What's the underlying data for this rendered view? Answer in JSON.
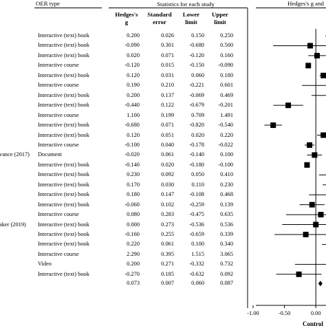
{
  "headers": {
    "group": "OER type",
    "stats": "Statistics for each study",
    "plot": "Hedges's g and",
    "hedges_line1": "Hedges's",
    "hedges_line2": "g",
    "se_line1": "Standard",
    "se_line2": "error",
    "lower_line1": "Lower",
    "lower_line2": "limit",
    "upper_line1": "Upper",
    "upper_line2": "limit"
  },
  "study_fragments": [
    "vance (2017)",
    "aker (2019)"
  ],
  "chart_data": {
    "type": "forest",
    "xlim": [
      -1.0,
      0.25
    ],
    "ticks": [
      "-1.00",
      "-0.50",
      "0.00"
    ],
    "axis_label": "Control",
    "rows": [
      {
        "study": "",
        "type": "Interactive (text) book",
        "g": "0.200",
        "se": "0.026",
        "lower": "0.150",
        "upper": "0.250"
      },
      {
        "study": "",
        "type": "Interactive (text) book",
        "g": "-0.090",
        "se": "0.301",
        "lower": "-0.680",
        "upper": "0.500"
      },
      {
        "study": "",
        "type": "Interactive (text) book",
        "g": "0.020",
        "se": "0.071",
        "lower": "-0.120",
        "upper": "0.160"
      },
      {
        "study": "",
        "type": "Interactive course",
        "g": "-0.120",
        "se": "0.015",
        "lower": "-0.150",
        "upper": "-0.090"
      },
      {
        "study": "",
        "type": "Interactive (text) book",
        "g": "0.120",
        "se": "0.031",
        "lower": "0.060",
        "upper": "0.180"
      },
      {
        "study": "",
        "type": "Interactive course",
        "g": "0.190",
        "se": "0.210",
        "lower": "-0.221",
        "upper": "0.601"
      },
      {
        "study": "",
        "type": "Interactive (text) book",
        "g": "0.200",
        "se": "0.137",
        "lower": "-0.069",
        "upper": "0.469"
      },
      {
        "study": "",
        "type": "Interactive (text) book",
        "g": "-0.440",
        "se": "0.122",
        "lower": "-0.679",
        "upper": "-0.201"
      },
      {
        "study": "",
        "type": "Interactive course",
        "g": "1.100",
        "se": "0.199",
        "lower": "0.709",
        "upper": "1.491"
      },
      {
        "study": "",
        "type": "Interactive (text) book",
        "g": "-0.680",
        "se": "0.071",
        "lower": "-0.820",
        "upper": "-0.540"
      },
      {
        "study": "",
        "type": "Interactive (text) book",
        "g": "0.120",
        "se": "0.051",
        "lower": "0.020",
        "upper": "0.220"
      },
      {
        "study": "",
        "type": "Interactive course",
        "g": "-0.100",
        "se": "0.040",
        "lower": "-0.178",
        "upper": "-0.022"
      },
      {
        "study": "vance (2017)",
        "type": "Document",
        "g": "-0.020",
        "se": "0.061",
        "lower": "-0.140",
        "upper": "0.100"
      },
      {
        "study": "",
        "type": "Interactive (text) book",
        "g": "-0.140",
        "se": "0.020",
        "lower": "-0.180",
        "upper": "-0.100"
      },
      {
        "study": "",
        "type": "Interactive (text) book",
        "g": "0.230",
        "se": "0.092",
        "lower": "0.050",
        "upper": "0.410"
      },
      {
        "study": "",
        "type": "Interactive (text) book",
        "g": "0.170",
        "se": "0.030",
        "lower": "0.110",
        "upper": "0.230"
      },
      {
        "study": "",
        "type": "Interactive (text) book",
        "g": "0.180",
        "se": "0.147",
        "lower": "-0.108",
        "upper": "0.468"
      },
      {
        "study": "",
        "type": "Interactive (text) book",
        "g": "-0.060",
        "se": "0.102",
        "lower": "-0.259",
        "upper": "0.139"
      },
      {
        "study": "",
        "type": "Interactive course",
        "g": "0.080",
        "se": "0.283",
        "lower": "-0.475",
        "upper": "0.635"
      },
      {
        "study": "aker (2019)",
        "type": "Interactive (text) book",
        "g": "0.000",
        "se": "0.273",
        "lower": "-0.536",
        "upper": "0.536"
      },
      {
        "study": "",
        "type": "Interactive (text) book",
        "g": "-0.160",
        "se": "0.255",
        "lower": "-0.659",
        "upper": "0.339"
      },
      {
        "study": "",
        "type": "Interactive (text) book",
        "g": "0.220",
        "se": "0.061",
        "lower": "0.100",
        "upper": "0.340"
      },
      {
        "study": "",
        "type": "Interactive course",
        "g": "2.290",
        "se": "0.395",
        "lower": "1.515",
        "upper": "3.065"
      },
      {
        "study": "",
        "type": "Video",
        "g": "0.200",
        "se": "0.271",
        "lower": "-0.332",
        "upper": "0.732"
      },
      {
        "study": "",
        "type": "Interactive (text) book",
        "g": "-0.270",
        "se": "0.185",
        "lower": "-0.632",
        "upper": "0.092"
      }
    ],
    "summary": {
      "g": "0.073",
      "se": "0.007",
      "lower": "0.060",
      "upper": "0.087"
    }
  }
}
